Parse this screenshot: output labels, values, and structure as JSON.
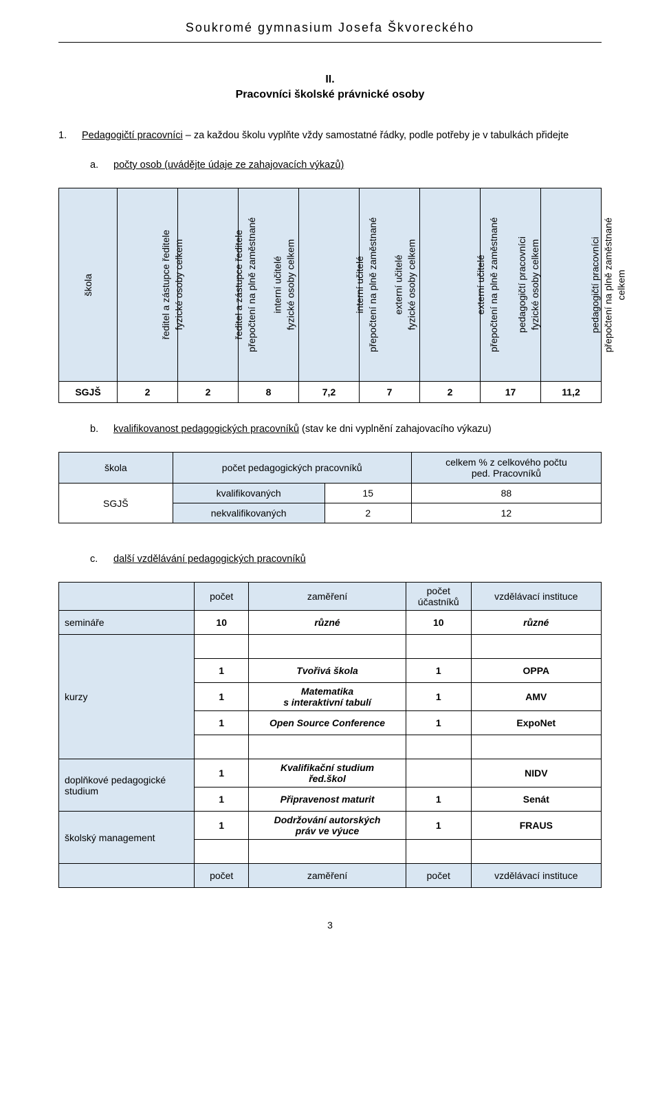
{
  "header": {
    "running": "Soukromé gymnasium Josefa Škvoreckého"
  },
  "section": {
    "num": "II.",
    "title": "Pracovníci školské právnické osoby"
  },
  "item1": {
    "num": "1.",
    "text_lead": "Pedagogičtí pracovníci",
    "text_rest": " – za každou školu vyplňte vždy samostatné řádky, podle potřeby je v tabulkách přidejte"
  },
  "item_a": {
    "num": "a.",
    "text": "počty osob (uvádějte údaje ze zahajovacích výkazů)"
  },
  "table_a": {
    "headers": [
      "škola",
      "ředitel a zástupce ředitele\nfyzické osoby celkem",
      "ředitel a zástupce ředitele\npřepočtení na plně zaměstnané",
      "interní učitelé\nfyzické osoby celkem",
      "interní učitelé\npřepočtení na plně zaměstnané",
      "externí učitelé\nfyzické osoby celkem",
      "externí učitelé\npřepočtení na plně zaměstnané",
      "pedagogičtí pracovníci\nfyzické osoby celkem",
      "pedagogičtí pracovníci\npřepočtení na plně zaměstnané\ncelkem"
    ],
    "row": [
      "SGJŠ",
      "2",
      "2",
      "8",
      "7,2",
      "7",
      "2",
      "17",
      "11,2"
    ]
  },
  "item_b": {
    "num": "b.",
    "lead": "kvalifikovanost pedagogických pracovníků",
    "rest": " (stav ke dni vyplnění zahajovacího výkazu)"
  },
  "table_b": {
    "h1": "škola",
    "h2": "počet pedagogických pracovníků",
    "h3_l1": "celkem % z celkového počtu",
    "h3_l2": "ped. Pracovníků",
    "school": "SGJŠ",
    "r1_label": "kvalifikovaných",
    "r1_n": "15",
    "r1_pct": "88",
    "r2_label": "nekvalifikovaných",
    "r2_n": "2",
    "r2_pct": "12"
  },
  "item_c": {
    "num": "c.",
    "text": "další vzdělávání pedagogických pracovníků"
  },
  "table_c": {
    "head": [
      "",
      "počet",
      "zaměření",
      "počet\nú častníků",
      "vzdělávací instituce"
    ],
    "head_c3_l1": "počet",
    "head_c3_l2": "účastníků",
    "seminare_label": "semináře",
    "seminare": [
      "10",
      "různé",
      "10",
      "různé"
    ],
    "kurzy_label": "kurzy",
    "k1": [
      "1",
      "Tvořivá škola",
      "1",
      "OPPA"
    ],
    "k2_l1": "Matematika",
    "k2_l2": "s interaktivní tabulí",
    "k2": [
      "1",
      "",
      "1",
      "AMV"
    ],
    "k3": [
      "1",
      "Open Source Conference",
      "1",
      "ExpoNet"
    ],
    "dopl_label_l1": "doplňkové pedagogické",
    "dopl_label_l2": "studium",
    "d1_l1": "Kvalifikační studium",
    "d1_l2": "řed.škol",
    "d1": [
      "1",
      "",
      "",
      "NIDV"
    ],
    "d2": [
      "1",
      "Připravenost maturit",
      "1",
      "Senát"
    ],
    "mgmt_label": "školský management",
    "m1_l1": "Dodržování autorských",
    "m1_l2": "práv ve výuce",
    "m1": [
      "1",
      "",
      "1",
      "FRAUS"
    ],
    "foot": [
      "",
      "počet",
      "zaměření",
      "počet",
      "vzdělávací instituce"
    ]
  },
  "page_number": "3",
  "colors": {
    "header_bg": "#d9e6f2",
    "border": "#000000",
    "text": "#000000",
    "background": "#ffffff"
  }
}
